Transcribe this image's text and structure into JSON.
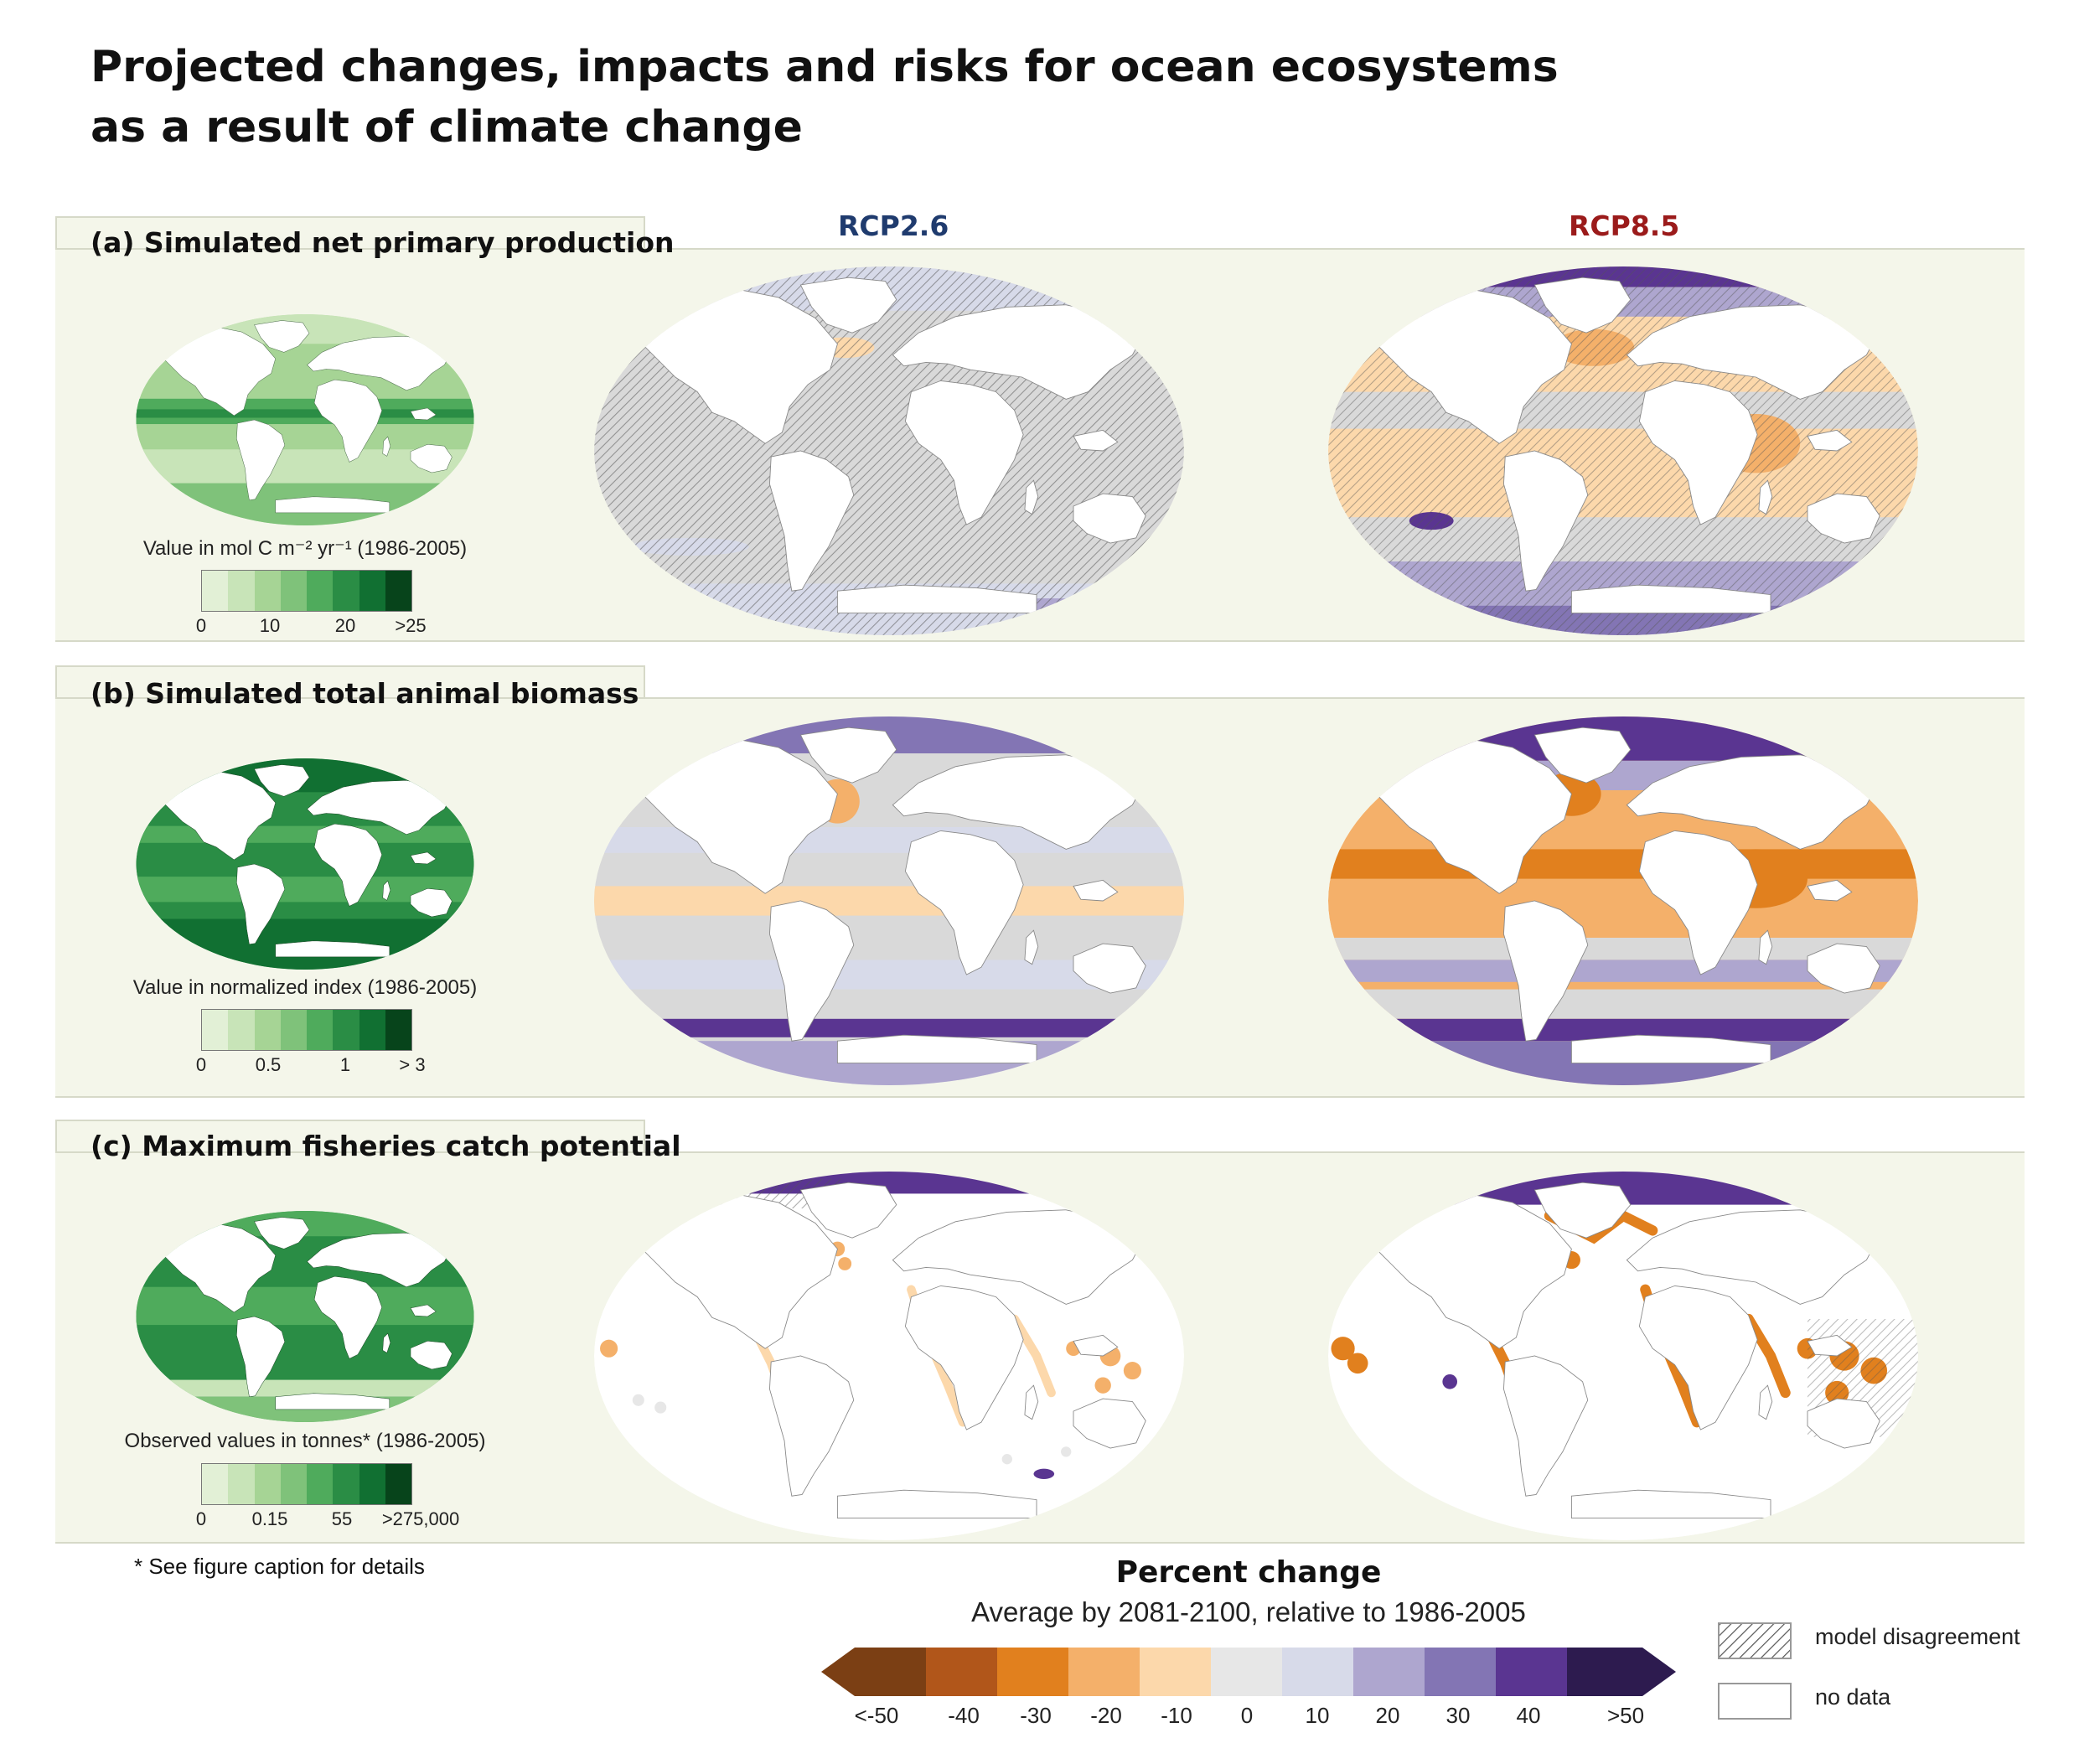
{
  "title": {
    "line1": "Projected changes, impacts and risks for ocean ecosystems",
    "line2": "as a result of climate change"
  },
  "scenarios": {
    "left": {
      "label": "RCP2.6",
      "color": "#1f3b6e"
    },
    "right": {
      "label": "RCP8.5",
      "color": "#9b1b1b"
    }
  },
  "panels": [
    {
      "label": "(a) Simulated net primary production",
      "baseline_caption": "Value in  mol C m⁻² yr⁻¹ (1986-2005)",
      "baseline_ticks": [
        "0",
        "10",
        "20",
        ">25"
      ]
    },
    {
      "label": "(b) Simulated total animal biomass",
      "baseline_caption": "Value in normalized index (1986-2005)",
      "baseline_ticks": [
        "0",
        "0.5",
        "1",
        "> 3"
      ]
    },
    {
      "label": "(c) Maximum fisheries catch potential",
      "baseline_caption": "Observed values in tonnes* (1986-2005)",
      "baseline_ticks": [
        "0",
        "0.15",
        "55",
        ">275,000"
      ]
    }
  ],
  "green_scale": [
    "#e2f0d6",
    "#c8e4b8",
    "#a6d495",
    "#7fc27a",
    "#4fab5c",
    "#2a8d45",
    "#117032",
    "#07441b"
  ],
  "footnote": "* See figure caption for details",
  "percent_change": {
    "title": "Percent change",
    "subtitle": "Average by 2081-2100, relative to 1986-2005",
    "ticks": [
      "<-50",
      "-40",
      "-30",
      "-20",
      "-10",
      "0",
      "10",
      "20",
      "30",
      "40",
      ">50"
    ],
    "colors": [
      "#7b3f14",
      "#b1561a",
      "#e1801e",
      "#f4b06a",
      "#fcd8ab",
      "#e7e7e7",
      "#d7dae9",
      "#aea6cf",
      "#8375b4",
      "#5a3591",
      "#2d1b4f"
    ]
  },
  "legend": {
    "disagreement": "model disagreement",
    "nodata": "no data"
  }
}
